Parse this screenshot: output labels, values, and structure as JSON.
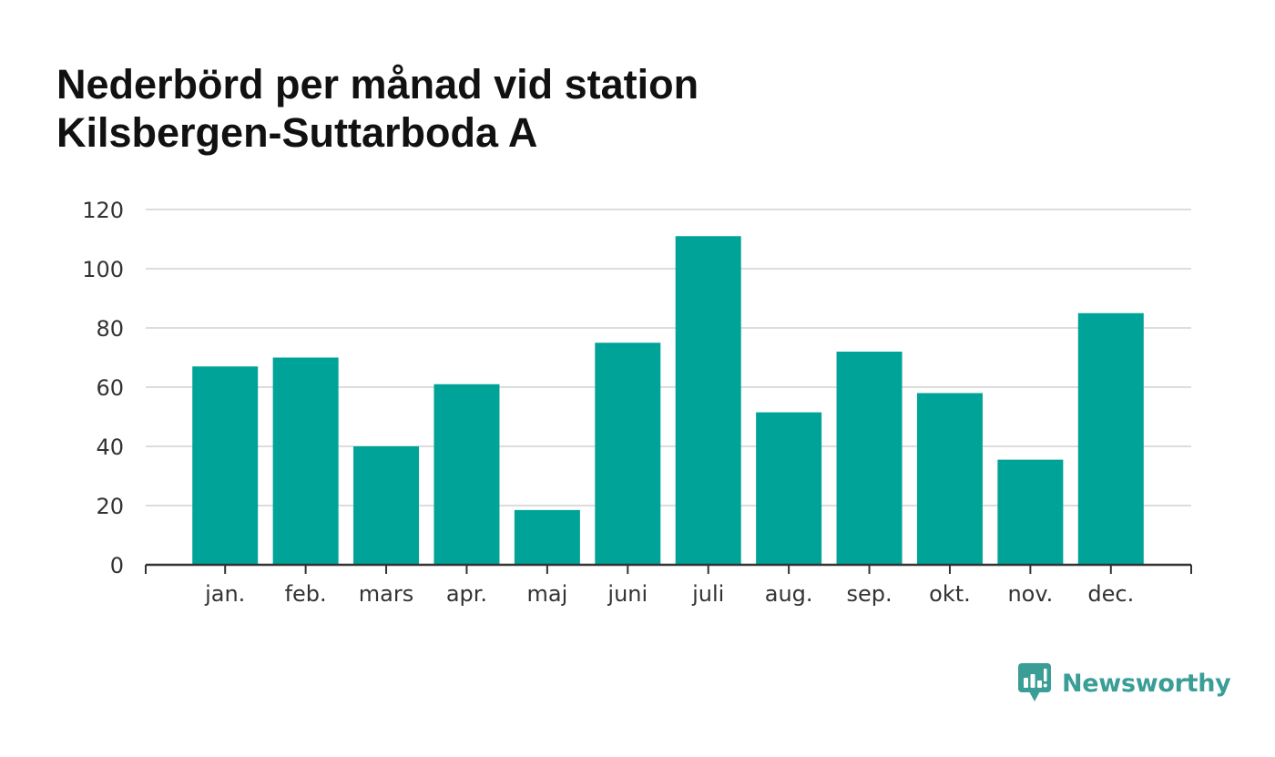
{
  "header": {
    "title_line1": "Nederbörd per månad vid station",
    "title_line2": "Kilsbergen-Suttarboda A"
  },
  "brand": {
    "name": "Newsworthy",
    "icon": "newsworthy-logo-icon",
    "color": "#3a9e97"
  },
  "colors": {
    "bar": "#00a398",
    "grid": "#dddddd",
    "axis": "#333333"
  },
  "chart_data": {
    "type": "bar",
    "title": "Nederbörd per månad vid station Kilsbergen-Suttarboda A",
    "categories": [
      "jan.",
      "feb.",
      "mars",
      "apr.",
      "maj",
      "juni",
      "juli",
      "aug.",
      "sep.",
      "okt.",
      "nov.",
      "dec."
    ],
    "values": [
      67,
      70,
      40,
      61,
      18.5,
      75,
      111,
      51.5,
      72,
      58,
      35.5,
      85
    ],
    "ylim": [
      0,
      120
    ],
    "yticks": [
      0,
      20,
      40,
      60,
      80,
      100,
      120
    ],
    "xlabel": "",
    "ylabel": "",
    "grid": true,
    "legend": "none"
  }
}
